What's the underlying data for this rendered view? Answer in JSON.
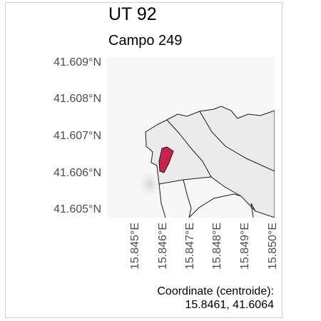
{
  "title": "UT 92",
  "subtitle": "Campo 249",
  "map": {
    "y_ticks": [
      "41.609°N",
      "41.608°N",
      "41.607°N",
      "41.606°N",
      "41.605°N"
    ],
    "x_ticks": [
      "15.845°E",
      "15.846°E",
      "15.847°E",
      "15.848°E",
      "15.849°E",
      "15.850°E"
    ],
    "highlight_color": "#c9224f",
    "parcel_fill": "#ebebeb",
    "background_fill": "#f7f7f7"
  },
  "footnote": {
    "label": "Coordinate (centroide):",
    "value": "15.8461, 41.6064"
  }
}
